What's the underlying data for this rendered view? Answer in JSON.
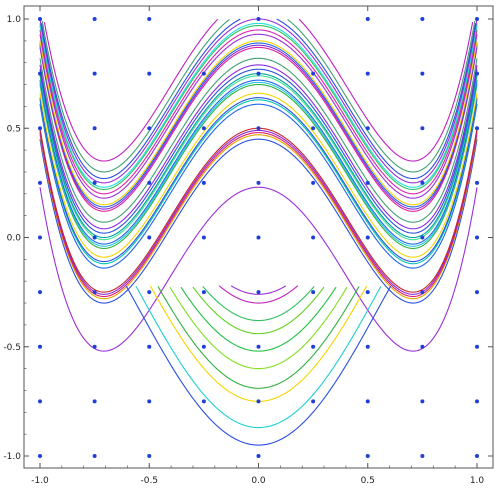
{
  "chart_data": {
    "type": "line",
    "title": "",
    "xlabel": "",
    "ylabel": "",
    "xlim": [
      -1.0,
      1.0
    ],
    "ylim": [
      -1.0,
      1.0
    ],
    "x_ticks": [
      "-1.0",
      "-0.5",
      "0.0",
      "0.5",
      "1.0"
    ],
    "y_ticks": [
      "1.0",
      "0.5",
      "0.0",
      "-0.5",
      "-1.0"
    ],
    "grid": false,
    "legend": "none",
    "frame_color": "#555555",
    "point_color": "#1f3fd8",
    "points": [
      [
        -1.0,
        1.0
      ],
      [
        -0.75,
        1.0
      ],
      [
        -0.5,
        1.0
      ],
      [
        0.0,
        1.0
      ],
      [
        0.5,
        1.0
      ],
      [
        0.75,
        1.0
      ],
      [
        1.0,
        1.0
      ],
      [
        -1.0,
        0.75
      ],
      [
        -0.75,
        0.75
      ],
      [
        -0.5,
        0.75
      ],
      [
        -0.25,
        0.75
      ],
      [
        0.0,
        0.75
      ],
      [
        0.25,
        0.75
      ],
      [
        0.5,
        0.75
      ],
      [
        0.75,
        0.75
      ],
      [
        1.0,
        0.75
      ],
      [
        -1.0,
        0.5
      ],
      [
        -0.75,
        0.5
      ],
      [
        -0.5,
        0.5
      ],
      [
        -0.25,
        0.5
      ],
      [
        0.0,
        0.5
      ],
      [
        0.25,
        0.5
      ],
      [
        0.5,
        0.5
      ],
      [
        0.75,
        0.5
      ],
      [
        1.0,
        0.5
      ],
      [
        -1.0,
        0.25
      ],
      [
        -0.75,
        0.25
      ],
      [
        -0.5,
        0.25
      ],
      [
        -0.25,
        0.25
      ],
      [
        0.0,
        0.25
      ],
      [
        0.25,
        0.25
      ],
      [
        0.5,
        0.25
      ],
      [
        0.75,
        0.25
      ],
      [
        1.0,
        0.25
      ],
      [
        -1.0,
        0.0
      ],
      [
        -0.75,
        0.0
      ],
      [
        -0.5,
        0.0
      ],
      [
        -0.25,
        0.0
      ],
      [
        0.0,
        0.0
      ],
      [
        0.25,
        0.0
      ],
      [
        0.5,
        0.0
      ],
      [
        0.75,
        0.0
      ],
      [
        1.0,
        0.0
      ],
      [
        -1.0,
        -0.25
      ],
      [
        -0.75,
        -0.25
      ],
      [
        -0.5,
        -0.25
      ],
      [
        -0.25,
        -0.25
      ],
      [
        0.0,
        -0.25
      ],
      [
        0.25,
        -0.25
      ],
      [
        0.5,
        -0.25
      ],
      [
        0.75,
        -0.25
      ],
      [
        1.0,
        -0.25
      ],
      [
        -1.0,
        -0.5
      ],
      [
        -0.75,
        -0.5
      ],
      [
        -0.5,
        -0.5
      ],
      [
        -0.25,
        -0.5
      ],
      [
        0.0,
        -0.5
      ],
      [
        0.25,
        -0.5
      ],
      [
        0.5,
        -0.5
      ],
      [
        0.75,
        -0.5
      ],
      [
        1.0,
        -0.5
      ],
      [
        -1.0,
        -0.75
      ],
      [
        -0.75,
        -0.75
      ],
      [
        -0.5,
        -0.75
      ],
      [
        -0.25,
        -0.75
      ],
      [
        0.0,
        -0.75
      ],
      [
        0.25,
        -0.75
      ],
      [
        0.5,
        -0.75
      ],
      [
        0.75,
        -0.75
      ],
      [
        1.0,
        -0.75
      ],
      [
        -1.0,
        -1.0
      ],
      [
        -0.75,
        -1.0
      ],
      [
        -0.5,
        -1.0
      ],
      [
        0.0,
        -1.0
      ],
      [
        0.5,
        -1.0
      ],
      [
        0.75,
        -1.0
      ],
      [
        1.0,
        -1.0
      ]
    ],
    "u_curves": [
      {
        "c": 0.23,
        "color": "#9b2fd8"
      },
      {
        "c": 0.45,
        "color": "#2a4fe0"
      },
      {
        "c": 0.47,
        "color": "#e0a800"
      },
      {
        "c": 0.48,
        "color": "#e0206a"
      },
      {
        "c": 0.49,
        "color": "#8a2ae0"
      },
      {
        "c": 0.5,
        "color": "#c82828"
      },
      {
        "c": 0.61,
        "color": "#2266e8"
      },
      {
        "c": 0.63,
        "color": "#00c8b0"
      },
      {
        "c": 0.64,
        "color": "#2a4fe0"
      },
      {
        "c": 0.66,
        "color": "#f5d400"
      },
      {
        "c": 0.7,
        "color": "#30b040"
      },
      {
        "c": 0.71,
        "color": "#20c8e0"
      },
      {
        "c": 0.72,
        "color": "#2266e8"
      },
      {
        "c": 0.74,
        "color": "#40e090"
      },
      {
        "c": 0.75,
        "color": "#00a0a0"
      },
      {
        "c": 0.77,
        "color": "#2a4fe0"
      },
      {
        "c": 0.79,
        "color": "#8a2ae0"
      },
      {
        "c": 0.82,
        "color": "#40a070"
      },
      {
        "c": 0.87,
        "color": "#e0209a"
      },
      {
        "c": 0.88,
        "color": "#8a2ae0"
      },
      {
        "c": 0.89,
        "color": "#2266e8"
      },
      {
        "c": 0.9,
        "color": "#f5d400"
      },
      {
        "c": 0.93,
        "color": "#9b2fd8"
      },
      {
        "c": 0.95,
        "color": "#e020b0"
      },
      {
        "c": 0.97,
        "color": "#30c060"
      },
      {
        "c": 0.98,
        "color": "#20e0e0"
      },
      {
        "c": 1.0,
        "color": "#9b2fd8"
      },
      {
        "c": 1.02,
        "color": "#2a4fe0"
      },
      {
        "c": 1.05,
        "color": "#40a070"
      },
      {
        "c": 1.1,
        "color": "#c020c0"
      }
    ],
    "down_curves": [
      {
        "c": 0.26,
        "color": "#9b2fd8"
      },
      {
        "c": 0.3,
        "color": "#c020c0"
      },
      {
        "c": 0.38,
        "color": "#30c060"
      },
      {
        "c": 0.44,
        "color": "#60d020"
      },
      {
        "c": 0.52,
        "color": "#20c040"
      },
      {
        "c": 0.6,
        "color": "#80e020"
      },
      {
        "c": 0.69,
        "color": "#30b040"
      },
      {
        "c": 0.75,
        "color": "#f5d400"
      },
      {
        "c": 0.87,
        "color": "#20d0d0"
      },
      {
        "c": 0.95,
        "color": "#2a4fe0"
      }
    ]
  }
}
